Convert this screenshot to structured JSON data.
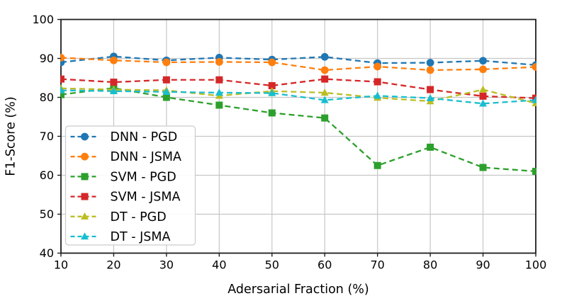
{
  "chart_data": {
    "type": "line",
    "title": "",
    "xlabel": "Adersarial Fraction (%)",
    "ylabel": "F1-Score (%)",
    "x": [
      10,
      20,
      30,
      40,
      50,
      60,
      70,
      80,
      90,
      100
    ],
    "xticks": [
      10,
      20,
      30,
      40,
      50,
      60,
      70,
      80,
      90,
      100
    ],
    "yticks": [
      40,
      50,
      60,
      70,
      80,
      90,
      100
    ],
    "xlim": [
      10,
      100
    ],
    "ylim": [
      40,
      100
    ],
    "grid": true,
    "grid_color": "#c6c6c6",
    "spine_color": "#1f1f1f",
    "line_style": "dashed",
    "legend_position": "lower-left",
    "series": [
      {
        "name": "DNN - PGD",
        "color": "#1f77b4",
        "marker": "circle",
        "values": [
          89.0,
          90.5,
          89.5,
          90.2,
          89.7,
          90.4,
          88.8,
          88.9,
          89.4,
          88.3
        ]
      },
      {
        "name": "DNN - JSMA",
        "color": "#ff7f0e",
        "marker": "circle",
        "values": [
          90.2,
          89.5,
          89.0,
          89.1,
          89.0,
          87.0,
          87.9,
          87.0,
          87.2,
          87.8
        ]
      },
      {
        "name": "SVM - PGD",
        "color": "#2ca02c",
        "marker": "square",
        "values": [
          80.7,
          82.4,
          80.0,
          78.0,
          76.0,
          74.7,
          62.5,
          67.2,
          62.0,
          61.0
        ]
      },
      {
        "name": "SVM - JSMA",
        "color": "#d62728",
        "marker": "square",
        "values": [
          84.7,
          83.9,
          84.5,
          84.5,
          83.0,
          84.7,
          84.0,
          82.0,
          80.3,
          79.8
        ]
      },
      {
        "name": "DT - PGD",
        "color": "#bcbd22",
        "marker": "triangle",
        "values": [
          82.3,
          82.0,
          81.8,
          80.4,
          81.6,
          81.2,
          79.9,
          79.0,
          82.0,
          78.5
        ]
      },
      {
        "name": "DT - JSMA",
        "color": "#17becf",
        "marker": "triangle",
        "values": [
          81.8,
          81.6,
          81.4,
          81.2,
          81.1,
          79.3,
          80.4,
          79.8,
          78.4,
          79.3
        ]
      }
    ]
  }
}
